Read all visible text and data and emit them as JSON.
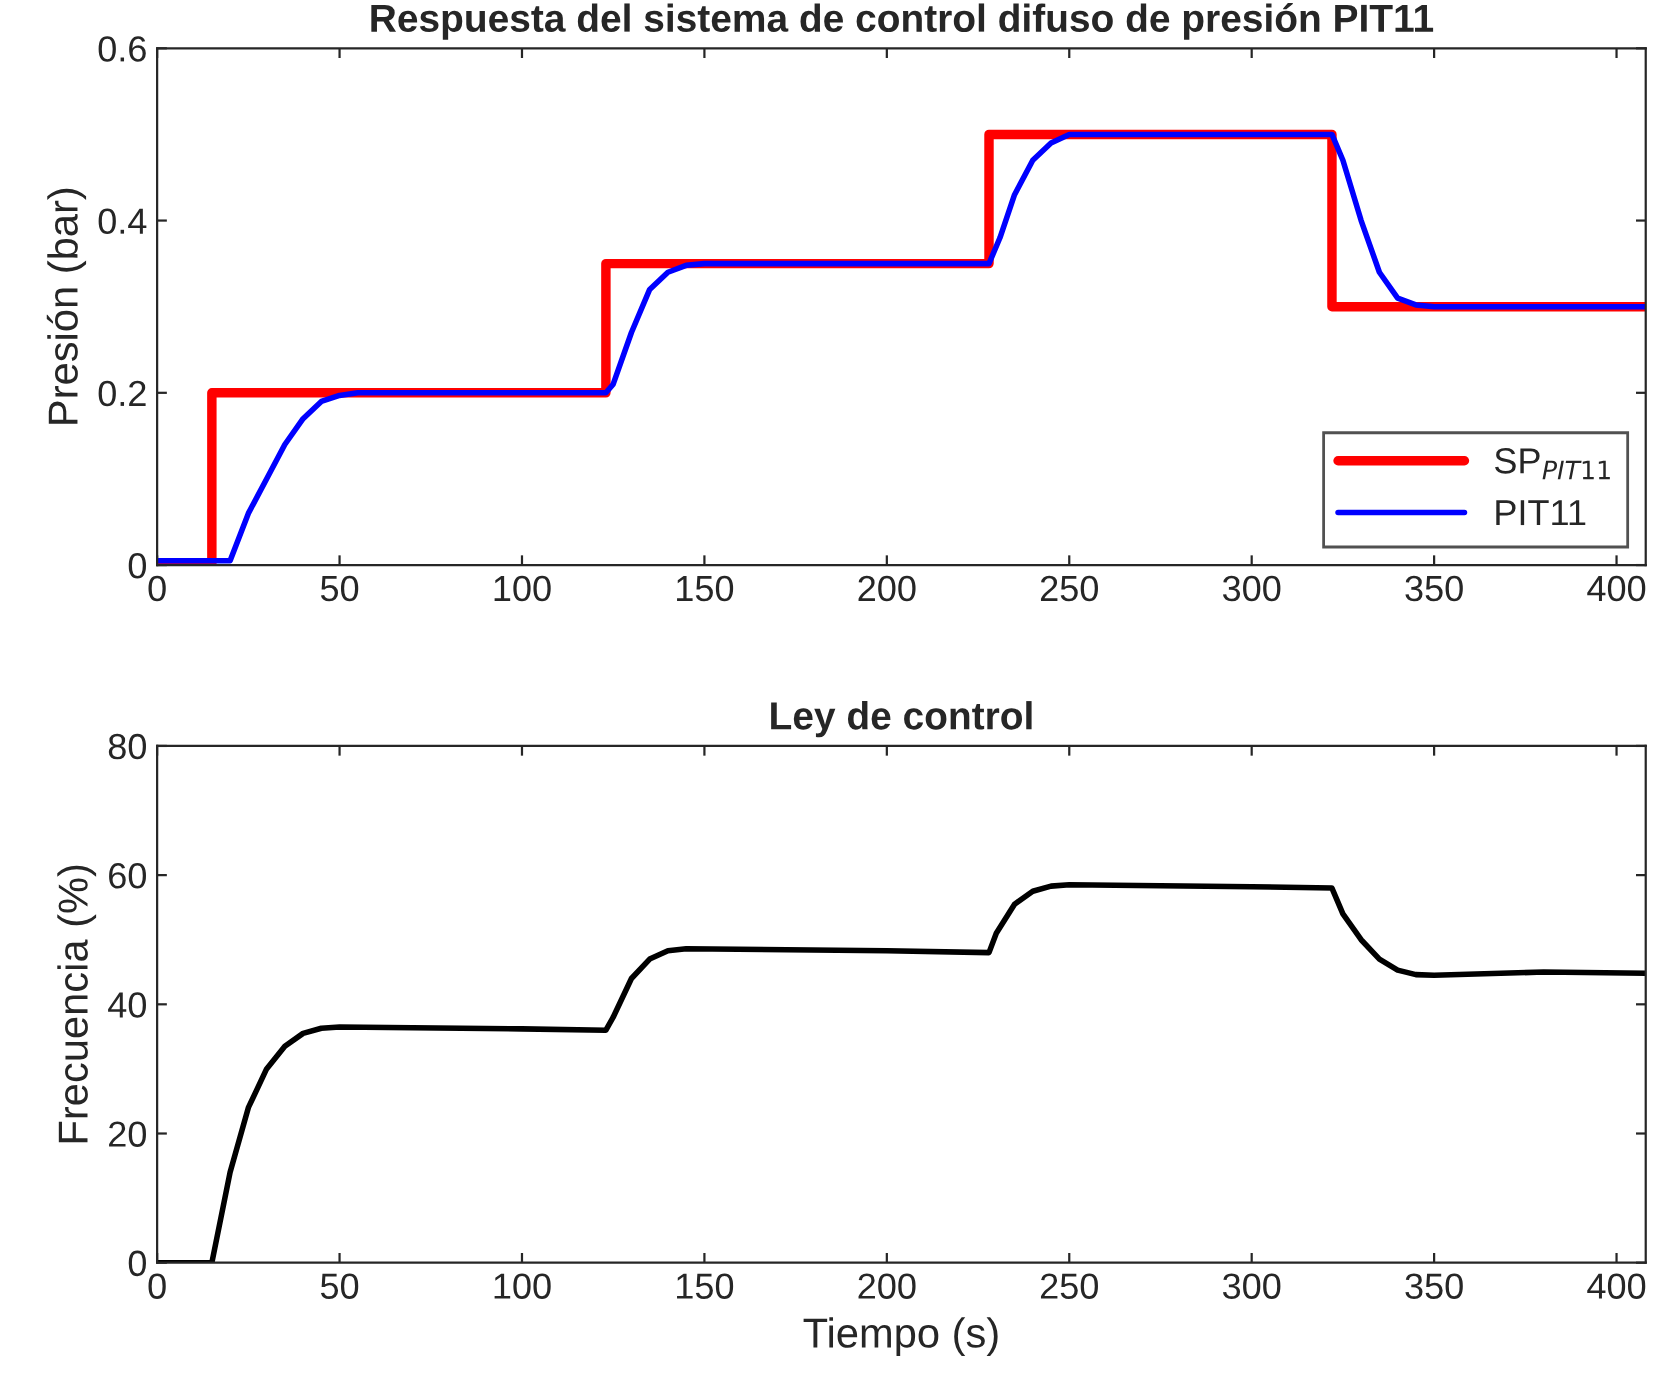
{
  "chart_data": [
    {
      "type": "line",
      "title": "Respuesta del sistema de control difuso de presión PIT11",
      "ylabel": "Presión (bar)",
      "xlim": [
        0,
        408
      ],
      "xticks": [
        0,
        50,
        100,
        150,
        200,
        250,
        300,
        350,
        400
      ],
      "ylim": [
        0,
        0.6
      ],
      "yticks": [
        0,
        0.2,
        0.4,
        0.6
      ],
      "legend": "bottom right",
      "grid": false,
      "series": [
        {
          "name": "SP$_{PIT11}$",
          "color": "#ff0000",
          "type": "step",
          "x": [
            0,
            15,
            123,
            228,
            322,
            408
          ],
          "values": [
            0,
            0.2,
            0.35,
            0.5,
            0.3,
            0.3
          ]
        },
        {
          "name": "PIT11",
          "color": "#0000ff",
          "type": "line",
          "x": [
            0,
            20,
            25,
            30,
            35,
            40,
            45,
            50,
            55,
            123,
            125,
            130,
            135,
            140,
            145,
            150,
            228,
            231,
            235,
            240,
            245,
            250,
            322,
            325,
            330,
            335,
            340,
            345,
            350,
            408
          ],
          "values": [
            0.005,
            0.005,
            0.06,
            0.1,
            0.14,
            0.17,
            0.19,
            0.197,
            0.2,
            0.2,
            0.21,
            0.27,
            0.32,
            0.34,
            0.348,
            0.35,
            0.35,
            0.38,
            0.43,
            0.47,
            0.49,
            0.5,
            0.5,
            0.47,
            0.4,
            0.34,
            0.31,
            0.302,
            0.3,
            0.3
          ]
        }
      ]
    },
    {
      "type": "line",
      "title": "Ley de control",
      "xlabel": "Tiempo (s)",
      "ylabel": "Frecuencia (%)",
      "xlim": [
        0,
        408
      ],
      "xticks": [
        0,
        50,
        100,
        150,
        200,
        250,
        300,
        350,
        400
      ],
      "ylim": [
        0,
        80
      ],
      "yticks": [
        0,
        20,
        40,
        60,
        80
      ],
      "grid": false,
      "series": [
        {
          "color": "#000000",
          "x": [
            0,
            15,
            20,
            25,
            30,
            35,
            40,
            45,
            50,
            100,
            123,
            125,
            130,
            135,
            140,
            145,
            200,
            228,
            230,
            235,
            240,
            245,
            250,
            300,
            322,
            325,
            330,
            335,
            340,
            345,
            350,
            380,
            408
          ],
          "values": [
            0,
            0,
            14,
            24,
            30,
            33.5,
            35.5,
            36.3,
            36.5,
            36.2,
            36,
            38,
            44,
            47,
            48.3,
            48.6,
            48.3,
            48,
            51,
            55.5,
            57.5,
            58.3,
            58.5,
            58.2,
            58,
            54,
            50,
            47,
            45.3,
            44.6,
            44.5,
            45,
            44.8
          ]
        }
      ]
    }
  ]
}
